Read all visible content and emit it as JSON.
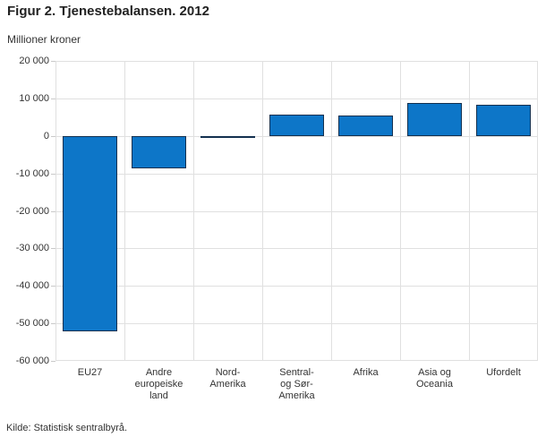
{
  "page": {
    "title": "Figur 2. Tjenestebalansen. 2012"
  },
  "footer": {
    "source": "Kilde: Statistisk sentralbyrå."
  },
  "chart_data": {
    "type": "bar",
    "title": "Figur 2. Tjenestebalansen. 2012",
    "unit_label": "Millioner kroner",
    "xlabel": "",
    "ylabel": "Millioner kroner",
    "categories": [
      "EU27",
      "Andre\neuropeiske\nland",
      "Nord-\nAmerika",
      "Sentral-\nog Sør-\nAmerika",
      "Afrika",
      "Asia og\nOceania",
      "Ufordelt"
    ],
    "values": [
      -52000,
      -8700,
      -500,
      5700,
      5500,
      8800,
      8300
    ],
    "ylim": [
      -60000,
      20000
    ],
    "ytick_values": [
      20000,
      10000,
      0,
      -10000,
      -20000,
      -30000,
      -40000,
      -50000,
      -60000
    ],
    "ytick_labels": [
      "20 000",
      "10 000",
      "0",
      "-10 000",
      "-20 000",
      "-30 000",
      "-40 000",
      "-50 000",
      "-60 000"
    ],
    "grid": true,
    "legend": "none",
    "colors": {
      "bar_fill": "#0d76c8",
      "bar_border": "#13304f",
      "gridline": "#e0e0e0",
      "text": "#333333"
    }
  }
}
